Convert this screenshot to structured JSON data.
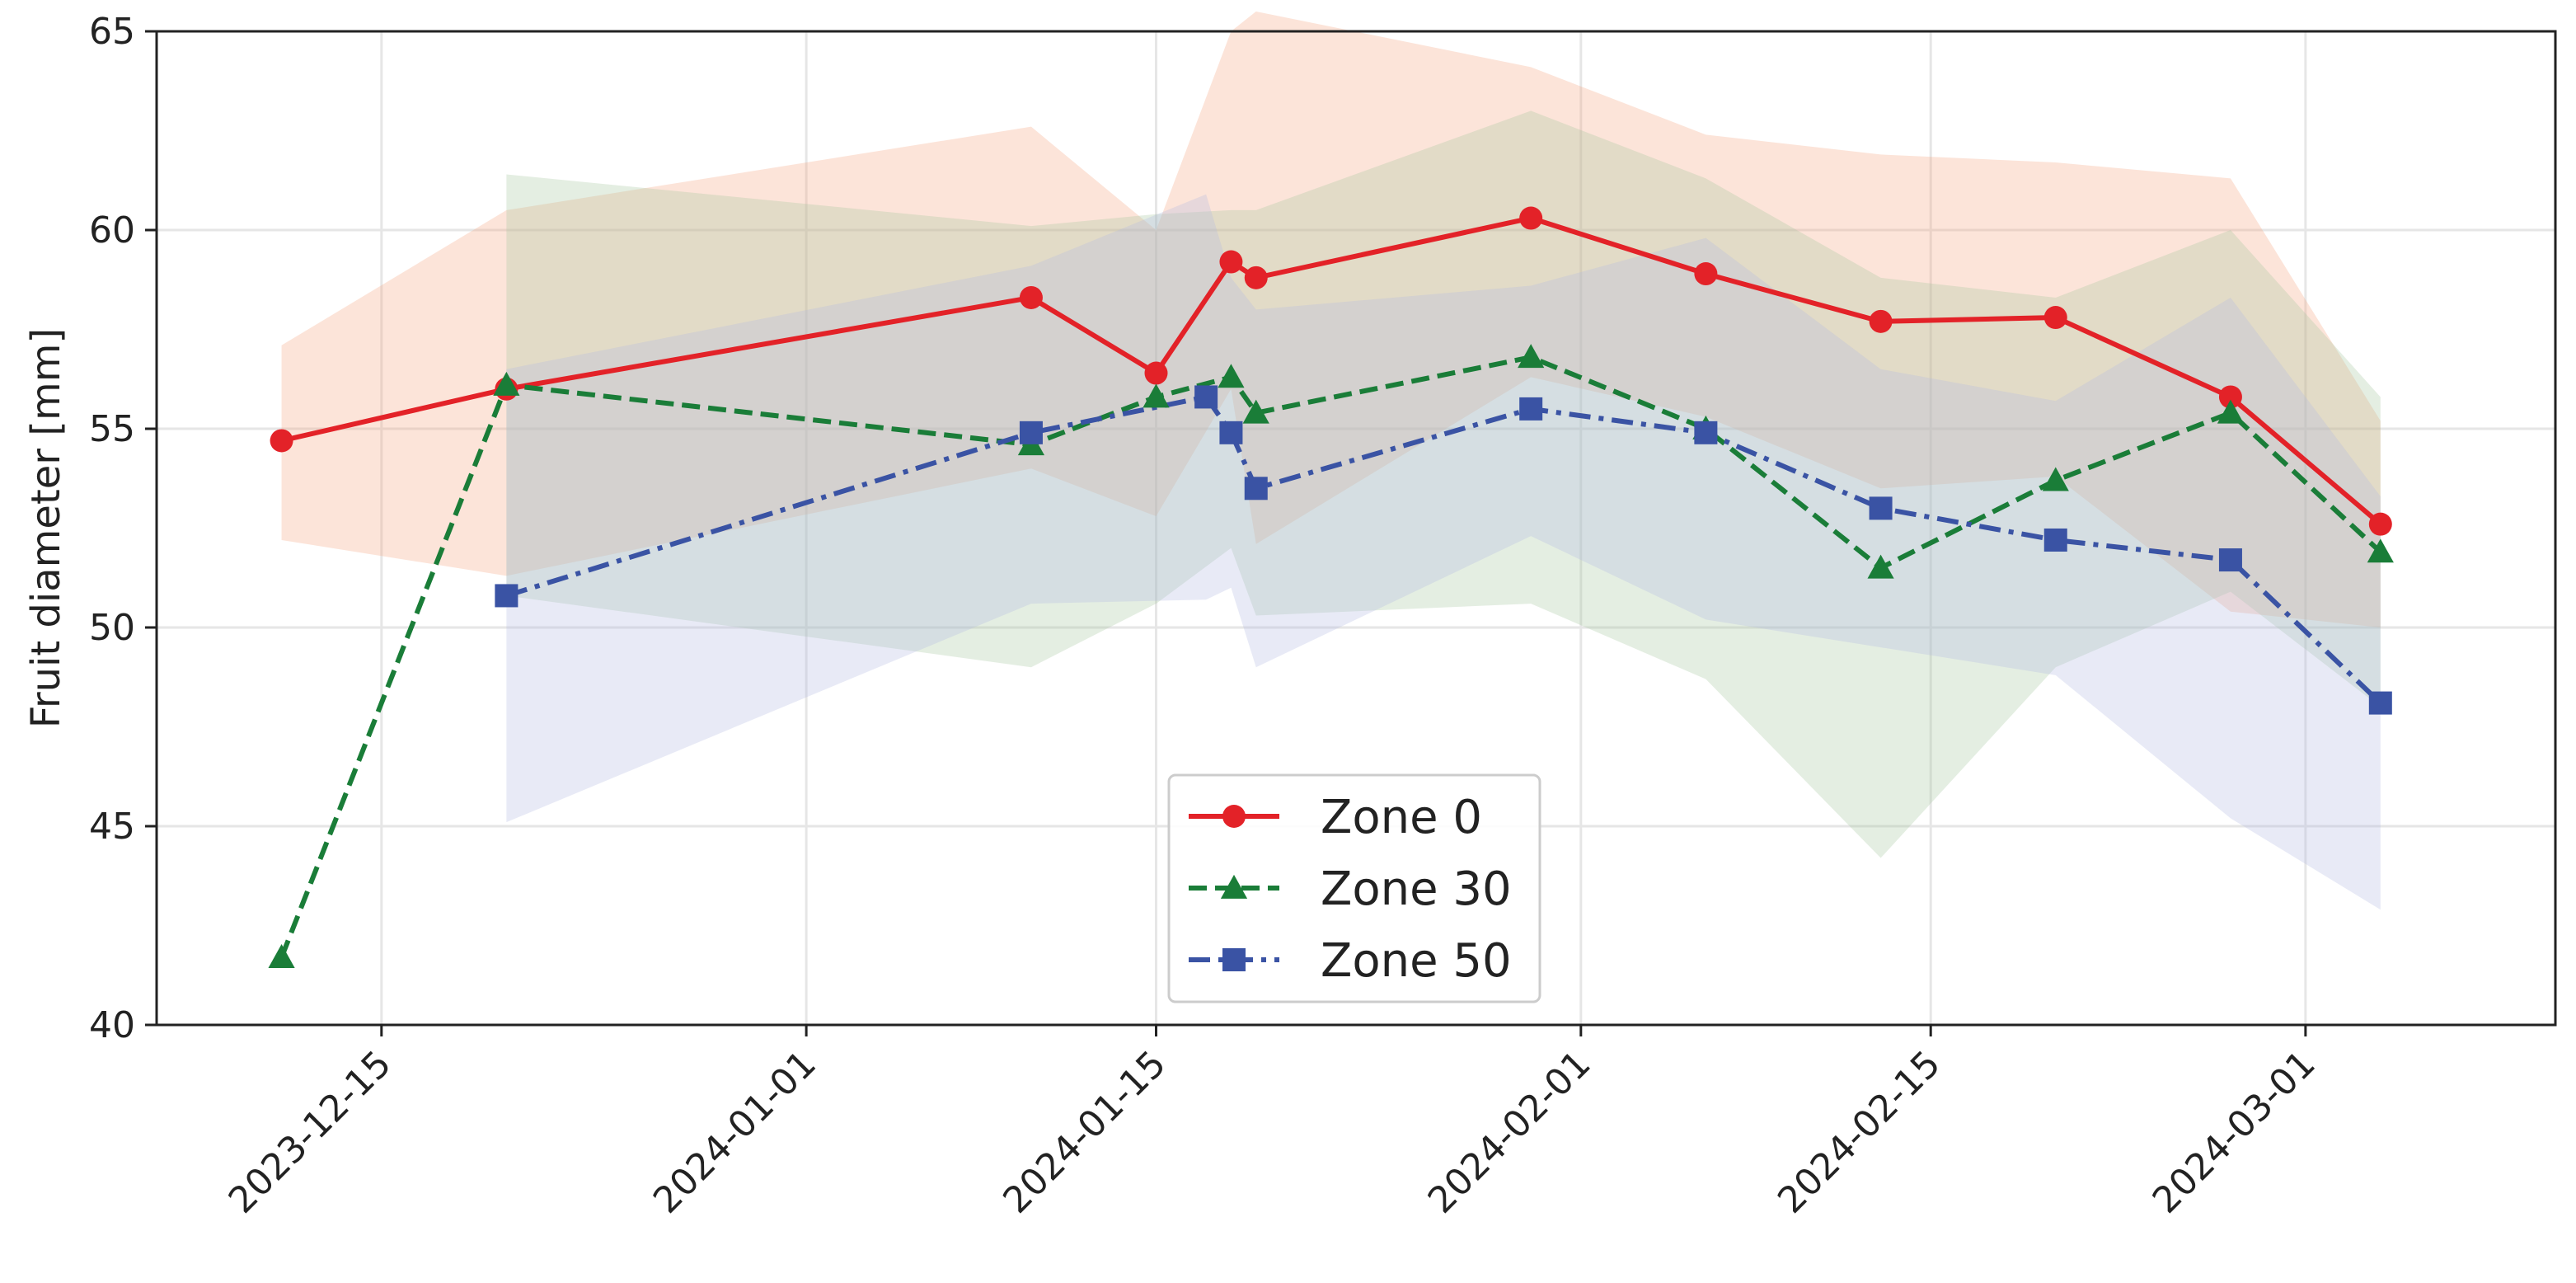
{
  "chart_data": {
    "type": "line",
    "title": "",
    "xlabel": "",
    "ylabel": "Fruit diameter [mm]",
    "ylim": [
      40,
      65
    ],
    "xlim": [
      "2023-12-06",
      "2024-03-11"
    ],
    "grid": true,
    "legend_position": "lower-center",
    "x_ticks": [
      "2023-12-15",
      "2024-01-01",
      "2024-01-15",
      "2024-02-01",
      "2024-02-15",
      "2024-03-01"
    ],
    "y_ticks": [
      40,
      45,
      50,
      55,
      60,
      65
    ],
    "series": [
      {
        "name": "Zone 0",
        "color": "#e32228",
        "band_color": "#f4a582",
        "marker": "circle",
        "line_style": "solid",
        "points": [
          {
            "x": "2023-12-11",
            "y": 54.7,
            "lo": 52.2,
            "hi": 57.1
          },
          {
            "x": "2023-12-20",
            "y": 56.0,
            "lo": 51.3,
            "hi": 60.5
          },
          {
            "x": "2024-01-10",
            "y": 58.3,
            "lo": 54.0,
            "hi": 62.6
          },
          {
            "x": "2024-01-15",
            "y": 56.4,
            "lo": 52.8,
            "hi": 60.0
          },
          {
            "x": "2024-01-18",
            "y": 59.2,
            "lo": 56.0,
            "hi": 65.0
          },
          {
            "x": "2024-01-19",
            "y": 58.8,
            "lo": 52.1,
            "hi": 65.5
          },
          {
            "x": "2024-01-30",
            "y": 60.3,
            "lo": 56.3,
            "hi": 64.1
          },
          {
            "x": "2024-02-06",
            "y": 58.9,
            "lo": 55.3,
            "hi": 62.4
          },
          {
            "x": "2024-02-13",
            "y": 57.7,
            "lo": 53.5,
            "hi": 61.9
          },
          {
            "x": "2024-02-20",
            "y": 57.8,
            "lo": 53.8,
            "hi": 61.7
          },
          {
            "x": "2024-02-27",
            "y": 55.8,
            "lo": 50.4,
            "hi": 61.3
          },
          {
            "x": "2024-03-04",
            "y": 52.6,
            "lo": 50.0,
            "hi": 55.2
          }
        ]
      },
      {
        "name": "Zone 30",
        "color": "#1a7d38",
        "band_color": "#a6c8a0",
        "marker": "triangle",
        "line_style": "dashed",
        "points": [
          {
            "x": "2023-12-11",
            "y": 41.7
          },
          {
            "x": "2023-12-20",
            "y": 56.1,
            "lo": 50.8,
            "hi": 61.4
          },
          {
            "x": "2024-01-10",
            "y": 54.6,
            "lo": 49.0,
            "hi": 60.1
          },
          {
            "x": "2024-01-15",
            "y": 55.8,
            "lo": 50.6,
            "hi": 60.4
          },
          {
            "x": "2024-01-18",
            "y": 56.3,
            "lo": 52.0,
            "hi": 60.5
          },
          {
            "x": "2024-01-19",
            "y": 55.4,
            "lo": 50.3,
            "hi": 60.5
          },
          {
            "x": "2024-01-30",
            "y": 56.8,
            "lo": 50.6,
            "hi": 63.0
          },
          {
            "x": "2024-02-06",
            "y": 55.0,
            "lo": 48.7,
            "hi": 61.3
          },
          {
            "x": "2024-02-13",
            "y": 51.5,
            "lo": 44.2,
            "hi": 58.8
          },
          {
            "x": "2024-02-20",
            "y": 53.7,
            "lo": 49.0,
            "hi": 58.3
          },
          {
            "x": "2024-02-27",
            "y": 55.4,
            "lo": 50.9,
            "hi": 60.0
          },
          {
            "x": "2024-03-04",
            "y": 51.9,
            "lo": 48.0,
            "hi": 55.8
          }
        ]
      },
      {
        "name": "Zone 50",
        "color": "#3a53a4",
        "band_color": "#b3b9e0",
        "marker": "square",
        "line_style": "dashdot",
        "points": [
          {
            "x": "2023-12-20",
            "y": 50.8,
            "lo": 45.1,
            "hi": 56.5
          },
          {
            "x": "2024-01-10",
            "y": 54.9,
            "lo": 50.6,
            "hi": 59.1
          },
          {
            "x": "2024-01-17",
            "y": 55.8,
            "lo": 50.7,
            "hi": 60.9
          },
          {
            "x": "2024-01-18",
            "y": 54.9,
            "lo": 51.0,
            "hi": 58.8
          },
          {
            "x": "2024-01-19",
            "y": 53.5,
            "lo": 49.0,
            "hi": 58.0
          },
          {
            "x": "2024-01-30",
            "y": 55.5,
            "lo": 52.3,
            "hi": 58.6
          },
          {
            "x": "2024-02-06",
            "y": 54.9,
            "lo": 50.2,
            "hi": 59.8
          },
          {
            "x": "2024-02-13",
            "y": 53.0,
            "lo": 49.5,
            "hi": 56.5
          },
          {
            "x": "2024-02-20",
            "y": 52.2,
            "lo": 48.8,
            "hi": 55.7
          },
          {
            "x": "2024-02-27",
            "y": 51.7,
            "lo": 45.2,
            "hi": 58.3
          },
          {
            "x": "2024-03-04",
            "y": 48.1,
            "lo": 42.9,
            "hi": 53.3
          }
        ]
      }
    ]
  }
}
